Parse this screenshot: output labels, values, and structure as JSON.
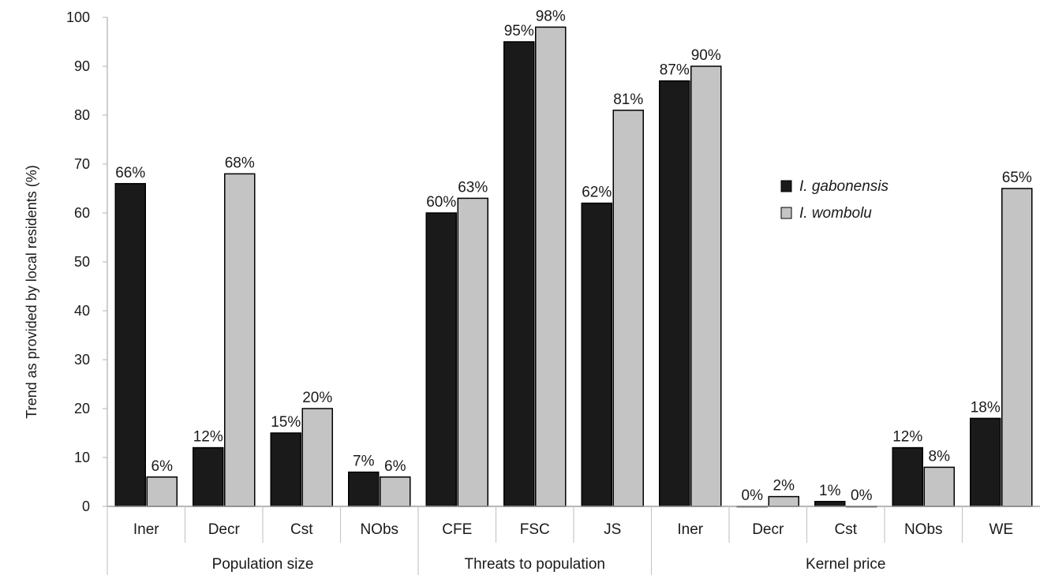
{
  "chart_data": {
    "type": "bar",
    "ylabel": "Trend as provided by local residents (%)",
    "ylim": [
      0,
      100
    ],
    "yticks": [
      0,
      10,
      20,
      30,
      40,
      50,
      60,
      70,
      80,
      90,
      100
    ],
    "categories": [
      "Iner",
      "Decr",
      "Cst",
      "NObs",
      "CFE",
      "FSC",
      "JS",
      "Iner",
      "Decr",
      "Cst",
      "NObs",
      "WE"
    ],
    "groups": [
      {
        "label": "Population size",
        "start": 0,
        "end": 3
      },
      {
        "label": "Threats to population",
        "start": 4,
        "end": 6
      },
      {
        "label": "Kernel price",
        "start": 7,
        "end": 11
      }
    ],
    "series": [
      {
        "name": "I. gabonensis",
        "color": "#1a1a1a",
        "values": [
          66,
          12,
          15,
          7,
          60,
          95,
          62,
          87,
          0,
          1,
          12,
          18
        ],
        "labels": [
          "66%",
          "12%",
          "15%",
          "7%",
          "60%",
          "95%",
          "62%",
          "87%",
          "0%",
          "1%",
          "12%",
          "18%"
        ]
      },
      {
        "name": "I. wombolu",
        "color": "#c4c4c4",
        "values": [
          6,
          68,
          20,
          6,
          63,
          98,
          81,
          90,
          2,
          0,
          8,
          65
        ],
        "labels": [
          "6%",
          "68%",
          "20%",
          "6%",
          "63%",
          "98%",
          "81%",
          "90%",
          "2%",
          "0%",
          "8%",
          "65%"
        ]
      }
    ],
    "legend": "right"
  }
}
